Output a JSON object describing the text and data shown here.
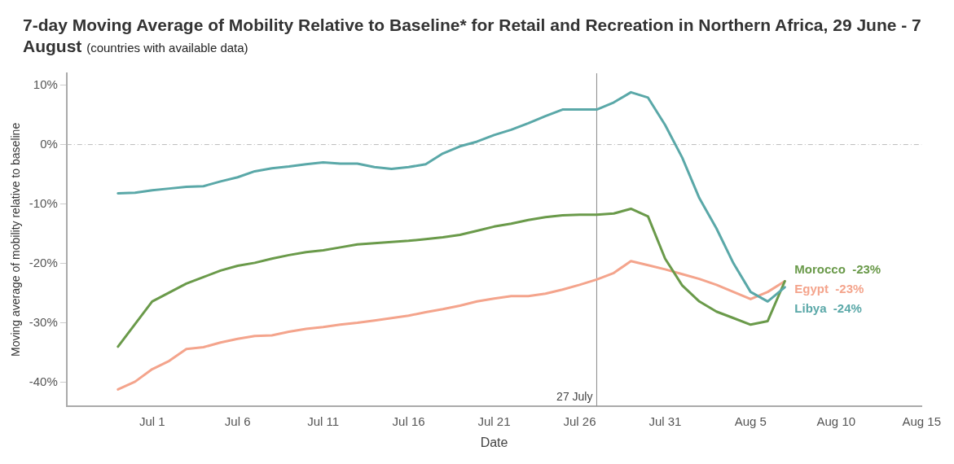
{
  "chart_data": {
    "type": "line",
    "title": "7-day Moving Average of Mobility Relative to Baseline* for Retail and Recreation in Northern Africa, 29 June - 7 August",
    "subtitle": "(countries with available data)",
    "xlabel": "Date",
    "ylabel": "Moving average of mobility relative to baseline",
    "x": [
      "--06-29",
      "--06-30",
      "--07-01",
      "--07-02",
      "--07-03",
      "--07-04",
      "--07-05",
      "--07-06",
      "--07-07",
      "--07-08",
      "--07-09",
      "--07-10",
      "--07-11",
      "--07-12",
      "--07-13",
      "--07-14",
      "--07-15",
      "--07-16",
      "--07-17",
      "--07-18",
      "--07-19",
      "--07-20",
      "--07-21",
      "--07-22",
      "--07-23",
      "--07-24",
      "--07-25",
      "--07-26",
      "--07-27",
      "--07-28",
      "--07-29",
      "--07-30",
      "--07-31",
      "--08-01",
      "--08-02",
      "--08-03",
      "--08-04",
      "--08-05",
      "--08-06",
      "--08-07"
    ],
    "series": [
      {
        "name": "Libya",
        "color": "#5aa8a8",
        "values": [
          -8.2,
          -8.1,
          -7.7,
          -7.4,
          -7.1,
          -7.0,
          -6.2,
          -5.5,
          -4.5,
          -4.0,
          -3.7,
          -3.3,
          -3.0,
          -3.2,
          -3.2,
          -3.8,
          -4.1,
          -3.8,
          -3.3,
          -1.5,
          -0.3,
          0.5,
          1.6,
          2.5,
          3.6,
          4.8,
          5.9,
          5.9,
          5.9,
          7.1,
          8.8,
          7.9,
          3.3,
          -2.2,
          -9.0,
          -14.1,
          -20.0,
          -24.8,
          -26.4,
          -24
        ],
        "value_labels": [
          null,
          null,
          null,
          null,
          null,
          null,
          null,
          null,
          null,
          null,
          null,
          null,
          null,
          null,
          null,
          null,
          null,
          null,
          null,
          null,
          null,
          null,
          null,
          null,
          null,
          null,
          null,
          null,
          null,
          null,
          null,
          null,
          null,
          null,
          null,
          null,
          null,
          null,
          null,
          "-24%"
        ]
      },
      {
        "name": "Morocco",
        "color": "#6a9a4a",
        "values": [
          -34.0,
          -30.2,
          -26.4,
          -24.9,
          -23.4,
          -22.3,
          -21.2,
          -20.4,
          -19.9,
          -19.2,
          -18.6,
          -18.1,
          -17.8,
          -17.3,
          -16.8,
          -16.6,
          -16.4,
          -16.2,
          -15.9,
          -15.6,
          -15.2,
          -14.5,
          -13.8,
          -13.3,
          -12.7,
          -12.2,
          -11.9,
          -11.8,
          -11.8,
          -11.6,
          -10.8,
          -12.1,
          -19.2,
          -23.7,
          -26.4,
          -28.1,
          -29.2,
          -30.3,
          -29.7,
          -23
        ],
        "value_labels": [
          null,
          null,
          null,
          null,
          null,
          null,
          null,
          null,
          null,
          null,
          null,
          null,
          null,
          null,
          null,
          null,
          null,
          null,
          null,
          null,
          null,
          null,
          null,
          null,
          null,
          null,
          null,
          null,
          null,
          null,
          null,
          null,
          null,
          null,
          null,
          null,
          null,
          null,
          null,
          "-23%"
        ]
      },
      {
        "name": "Egypt",
        "color": "#f4a48c",
        "values": [
          -41.2,
          -39.9,
          -37.8,
          -36.4,
          -34.4,
          -34.1,
          -33.3,
          -32.7,
          -32.2,
          -32.1,
          -31.5,
          -31.0,
          -30.7,
          -30.3,
          -30.0,
          -29.6,
          -29.2,
          -28.8,
          -28.2,
          -27.7,
          -27.1,
          -26.4,
          -25.9,
          -25.5,
          -25.5,
          -25.1,
          -24.4,
          -23.6,
          -22.7,
          -21.6,
          -19.6,
          -20.3,
          -21.0,
          -21.8,
          -22.6,
          -23.6,
          -24.8,
          -26.0,
          -24.8,
          -23
        ],
        "value_labels": [
          null,
          null,
          null,
          null,
          null,
          null,
          null,
          null,
          null,
          null,
          null,
          null,
          null,
          null,
          null,
          null,
          null,
          null,
          null,
          null,
          null,
          null,
          null,
          null,
          null,
          null,
          null,
          null,
          null,
          null,
          null,
          null,
          null,
          null,
          null,
          null,
          null,
          null,
          null,
          "-23%"
        ]
      }
    ],
    "xlim": [
      "--06-26",
      "--08-15"
    ],
    "xticks": [
      {
        "value": "--07-01",
        "label": "Jul 1"
      },
      {
        "value": "--07-06",
        "label": "Jul 6"
      },
      {
        "value": "--07-11",
        "label": "Jul 11"
      },
      {
        "value": "--07-16",
        "label": "Jul 16"
      },
      {
        "value": "--07-21",
        "label": "Jul 21"
      },
      {
        "value": "--07-26",
        "label": "Jul 26"
      },
      {
        "value": "--07-31",
        "label": "Jul 31"
      },
      {
        "value": "--08-05",
        "label": "Aug 5"
      },
      {
        "value": "--08-10",
        "label": "Aug 10"
      },
      {
        "value": "--08-15",
        "label": "Aug 15"
      }
    ],
    "ylim": [
      -44,
      12
    ],
    "yticks": [
      {
        "value": 10,
        "label": "10%"
      },
      {
        "value": 0,
        "label": "0%"
      },
      {
        "value": -10,
        "label": "-10%"
      },
      {
        "value": -20,
        "label": "-20%"
      },
      {
        "value": -30,
        "label": "-30%"
      },
      {
        "value": -40,
        "label": "-40%"
      }
    ],
    "ref_lines": [
      {
        "axis": "y",
        "value": 0,
        "label": null,
        "color": "#bbbbbb",
        "line_style": "dashed"
      },
      {
        "axis": "x",
        "value": "--07-27",
        "label": "27 July",
        "color": "#888888",
        "line_style": "solid"
      }
    ],
    "line_style": "solid",
    "marker": "none"
  }
}
